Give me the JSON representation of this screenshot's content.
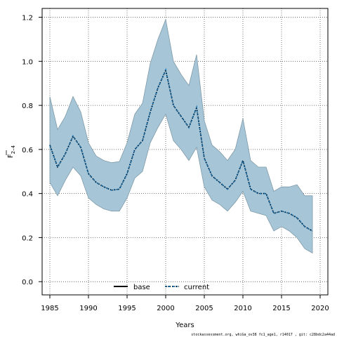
{
  "chart_data": {
    "type": "line",
    "xlabel": "Years",
    "ylabel": "F",
    "ylabel_subscript": "2–4",
    "xlim": [
      1984,
      2021
    ],
    "ylim": [
      -0.06,
      1.24
    ],
    "xticks": [
      1985,
      1990,
      1995,
      2000,
      2005,
      2010,
      2015,
      2020
    ],
    "yticks": [
      0.0,
      0.2,
      0.4,
      0.6,
      0.8,
      1.0,
      1.2
    ],
    "xtick_labels": [
      "1985",
      "1990",
      "1995",
      "2000",
      "2005",
      "2010",
      "2015",
      "2020"
    ],
    "ytick_labels": [
      "0.0",
      "0.2",
      "0.4",
      "0.6",
      "0.8",
      "1.0",
      "1.2"
    ],
    "grid": true,
    "legend_position": "bottom",
    "band": {
      "color": "#a6c6d8",
      "x": [
        1985,
        1986,
        1987,
        1988,
        1989,
        1990,
        1991,
        1992,
        1993,
        1994,
        1995,
        1996,
        1997,
        1998,
        1999,
        2000,
        2001,
        2002,
        2003,
        2004,
        2005,
        2006,
        2007,
        2008,
        2009,
        2010,
        2011,
        2012,
        2013,
        2014,
        2015,
        2016,
        2017,
        2018,
        2019
      ],
      "upper": [
        0.84,
        0.69,
        0.75,
        0.84,
        0.77,
        0.63,
        0.57,
        0.55,
        0.54,
        0.545,
        0.63,
        0.76,
        0.81,
        0.99,
        1.1,
        1.19,
        1.0,
        0.94,
        0.89,
        1.03,
        0.73,
        0.62,
        0.59,
        0.55,
        0.6,
        0.74,
        0.55,
        0.52,
        0.52,
        0.41,
        0.43,
        0.43,
        0.44,
        0.39,
        0.39
      ],
      "lower": [
        0.45,
        0.39,
        0.46,
        0.52,
        0.48,
        0.38,
        0.35,
        0.33,
        0.32,
        0.32,
        0.38,
        0.47,
        0.5,
        0.63,
        0.7,
        0.76,
        0.64,
        0.6,
        0.55,
        0.61,
        0.43,
        0.37,
        0.35,
        0.32,
        0.36,
        0.41,
        0.32,
        0.31,
        0.3,
        0.23,
        0.25,
        0.23,
        0.2,
        0.15,
        0.13
      ]
    },
    "series": [
      {
        "name": "base",
        "color": "#000000",
        "style": "solid",
        "x": [],
        "values": []
      },
      {
        "name": "current",
        "color": "#000000",
        "accent": "#1f77b4",
        "style": "dotted",
        "x": [
          1985,
          1986,
          1987,
          1988,
          1989,
          1990,
          1991,
          1992,
          1993,
          1994,
          1995,
          1996,
          1997,
          1998,
          1999,
          2000,
          2001,
          2002,
          2003,
          2004,
          2005,
          2006,
          2007,
          2008,
          2009,
          2010,
          2011,
          2012,
          2013,
          2014,
          2015,
          2016,
          2017,
          2018,
          2019
        ],
        "values": [
          0.62,
          0.52,
          0.58,
          0.66,
          0.61,
          0.49,
          0.45,
          0.43,
          0.415,
          0.42,
          0.49,
          0.6,
          0.64,
          0.77,
          0.88,
          0.96,
          0.8,
          0.75,
          0.7,
          0.79,
          0.56,
          0.48,
          0.45,
          0.42,
          0.46,
          0.55,
          0.42,
          0.4,
          0.4,
          0.31,
          0.32,
          0.31,
          0.29,
          0.25,
          0.23
        ]
      }
    ]
  },
  "footer_text": "stockassessment.org, whiGa_ov38 fc1_age1, r14017 , git: c28bdc2a44ad"
}
